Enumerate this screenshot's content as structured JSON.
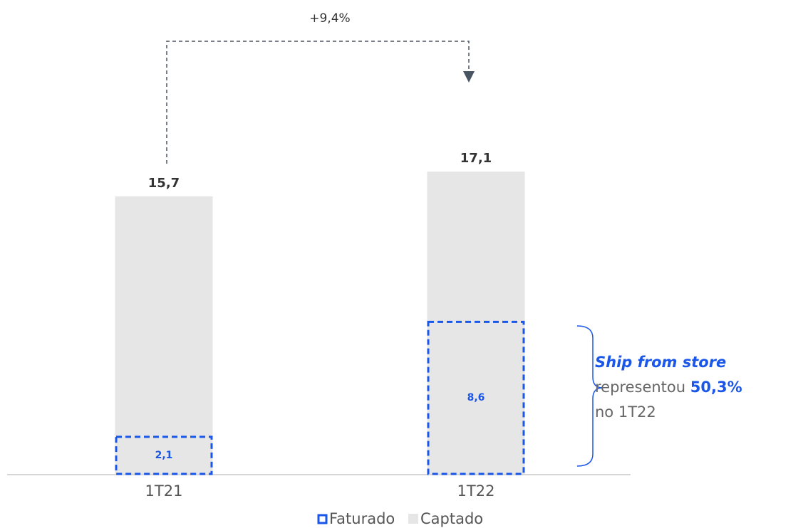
{
  "chart_data": {
    "type": "bar",
    "categories": [
      "1T21",
      "1T22"
    ],
    "series": [
      {
        "name": "Faturado",
        "color": "#1a56e8",
        "values": [
          2.1,
          8.6
        ],
        "value_labels": [
          "2,1",
          "8,6"
        ]
      },
      {
        "name": "Captado",
        "color": "#e6e6e6",
        "values": [
          15.7,
          17.1
        ],
        "value_labels": [
          "15,7",
          "17,1"
        ]
      }
    ],
    "annotations": {
      "growth": "+9,4%",
      "note": [
        "Ship from store",
        "representou",
        "50,3%",
        "no 1T22"
      ]
    }
  }
}
